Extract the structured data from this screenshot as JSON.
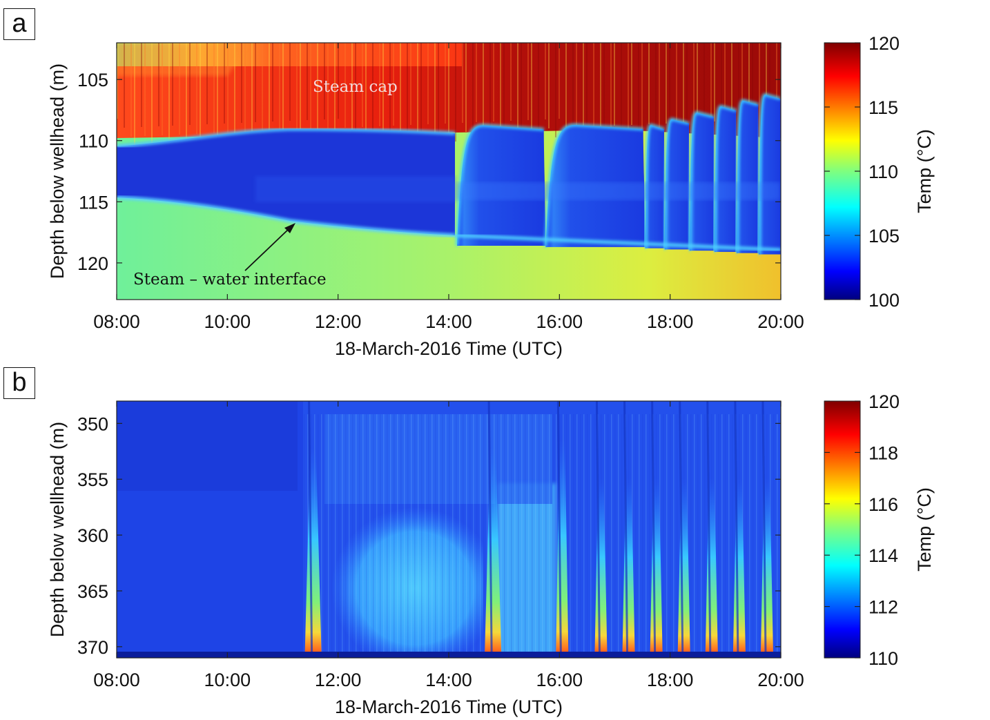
{
  "panels": [
    {
      "label": "a",
      "chart_data": {
        "type": "heatmap",
        "x_ticks": [
          "08:00",
          "10:00",
          "12:00",
          "14:00",
          "16:00",
          "18:00",
          "20:00"
        ],
        "x_range_hours": [
          8,
          20
        ],
        "xlabel": "18-March-2016 Time (UTC)",
        "ylabel": "Depth below wellhead (m)",
        "y_ticks": [
          105,
          110,
          115,
          120
        ],
        "ylim": [
          102,
          123
        ],
        "y_inverted": true,
        "colorbar": {
          "label": "Temp  (°C)",
          "range": [
            100,
            120
          ],
          "ticks": [
            100,
            105,
            110,
            115,
            120
          ],
          "colormap": "jet"
        },
        "annotations": [
          {
            "text": "Steam cap",
            "time": 12.3,
            "depth": 106.0,
            "color": "#f2dada"
          },
          {
            "text": "Steam – water interface",
            "time": 10.0,
            "depth": 121.5,
            "color": "#111111",
            "arrow_to": {
              "time": 11.2,
              "depth": 116.8
            }
          }
        ],
        "features": {
          "interface_depth": [
            [
              8,
              115.0
            ],
            [
              10,
              115.8
            ],
            [
              11.2,
              116.4
            ],
            [
              12,
              117.2
            ],
            [
              14,
              118.0
            ],
            [
              16,
              118.5
            ],
            [
              18,
              119.0
            ],
            [
              20,
              119.4
            ]
          ],
          "upper_interface_depth": [
            [
              8,
              110.8
            ],
            [
              10,
              110.0
            ],
            [
              12,
              109.6
            ],
            [
              14.1,
              109.8
            ],
            [
              14.3,
              108.0
            ],
            [
              15,
              108.8
            ],
            [
              16,
              108.5
            ],
            [
              17.5,
              109.0
            ],
            [
              20,
              106.0
            ]
          ],
          "refill_events": [
            14.15,
            15.75,
            17.55,
            17.9,
            18.35,
            18.8,
            19.2,
            19.6,
            20.0
          ]
        }
      }
    },
    {
      "label": "b",
      "chart_data": {
        "type": "heatmap",
        "x_ticks": [
          "08:00",
          "10:00",
          "12:00",
          "14:00",
          "16:00",
          "18:00",
          "20:00"
        ],
        "x_range_hours": [
          8,
          20
        ],
        "xlabel": "18-March-2016 Time (UTC)",
        "ylabel": "Depth below wellhead (m)",
        "y_ticks": [
          350,
          355,
          360,
          365,
          370
        ],
        "ylim": [
          348,
          371
        ],
        "y_inverted": true,
        "colorbar": {
          "label": "Temp  (°C)",
          "range": [
            110,
            120
          ],
          "ticks": [
            110,
            112,
            114,
            116,
            118,
            120
          ],
          "colormap": "jet"
        },
        "features": {
          "spike_events": [
            11.55,
            14.8,
            16.05,
            16.75,
            17.25,
            17.75,
            18.25,
            18.75,
            19.25,
            19.75
          ]
        }
      }
    }
  ]
}
